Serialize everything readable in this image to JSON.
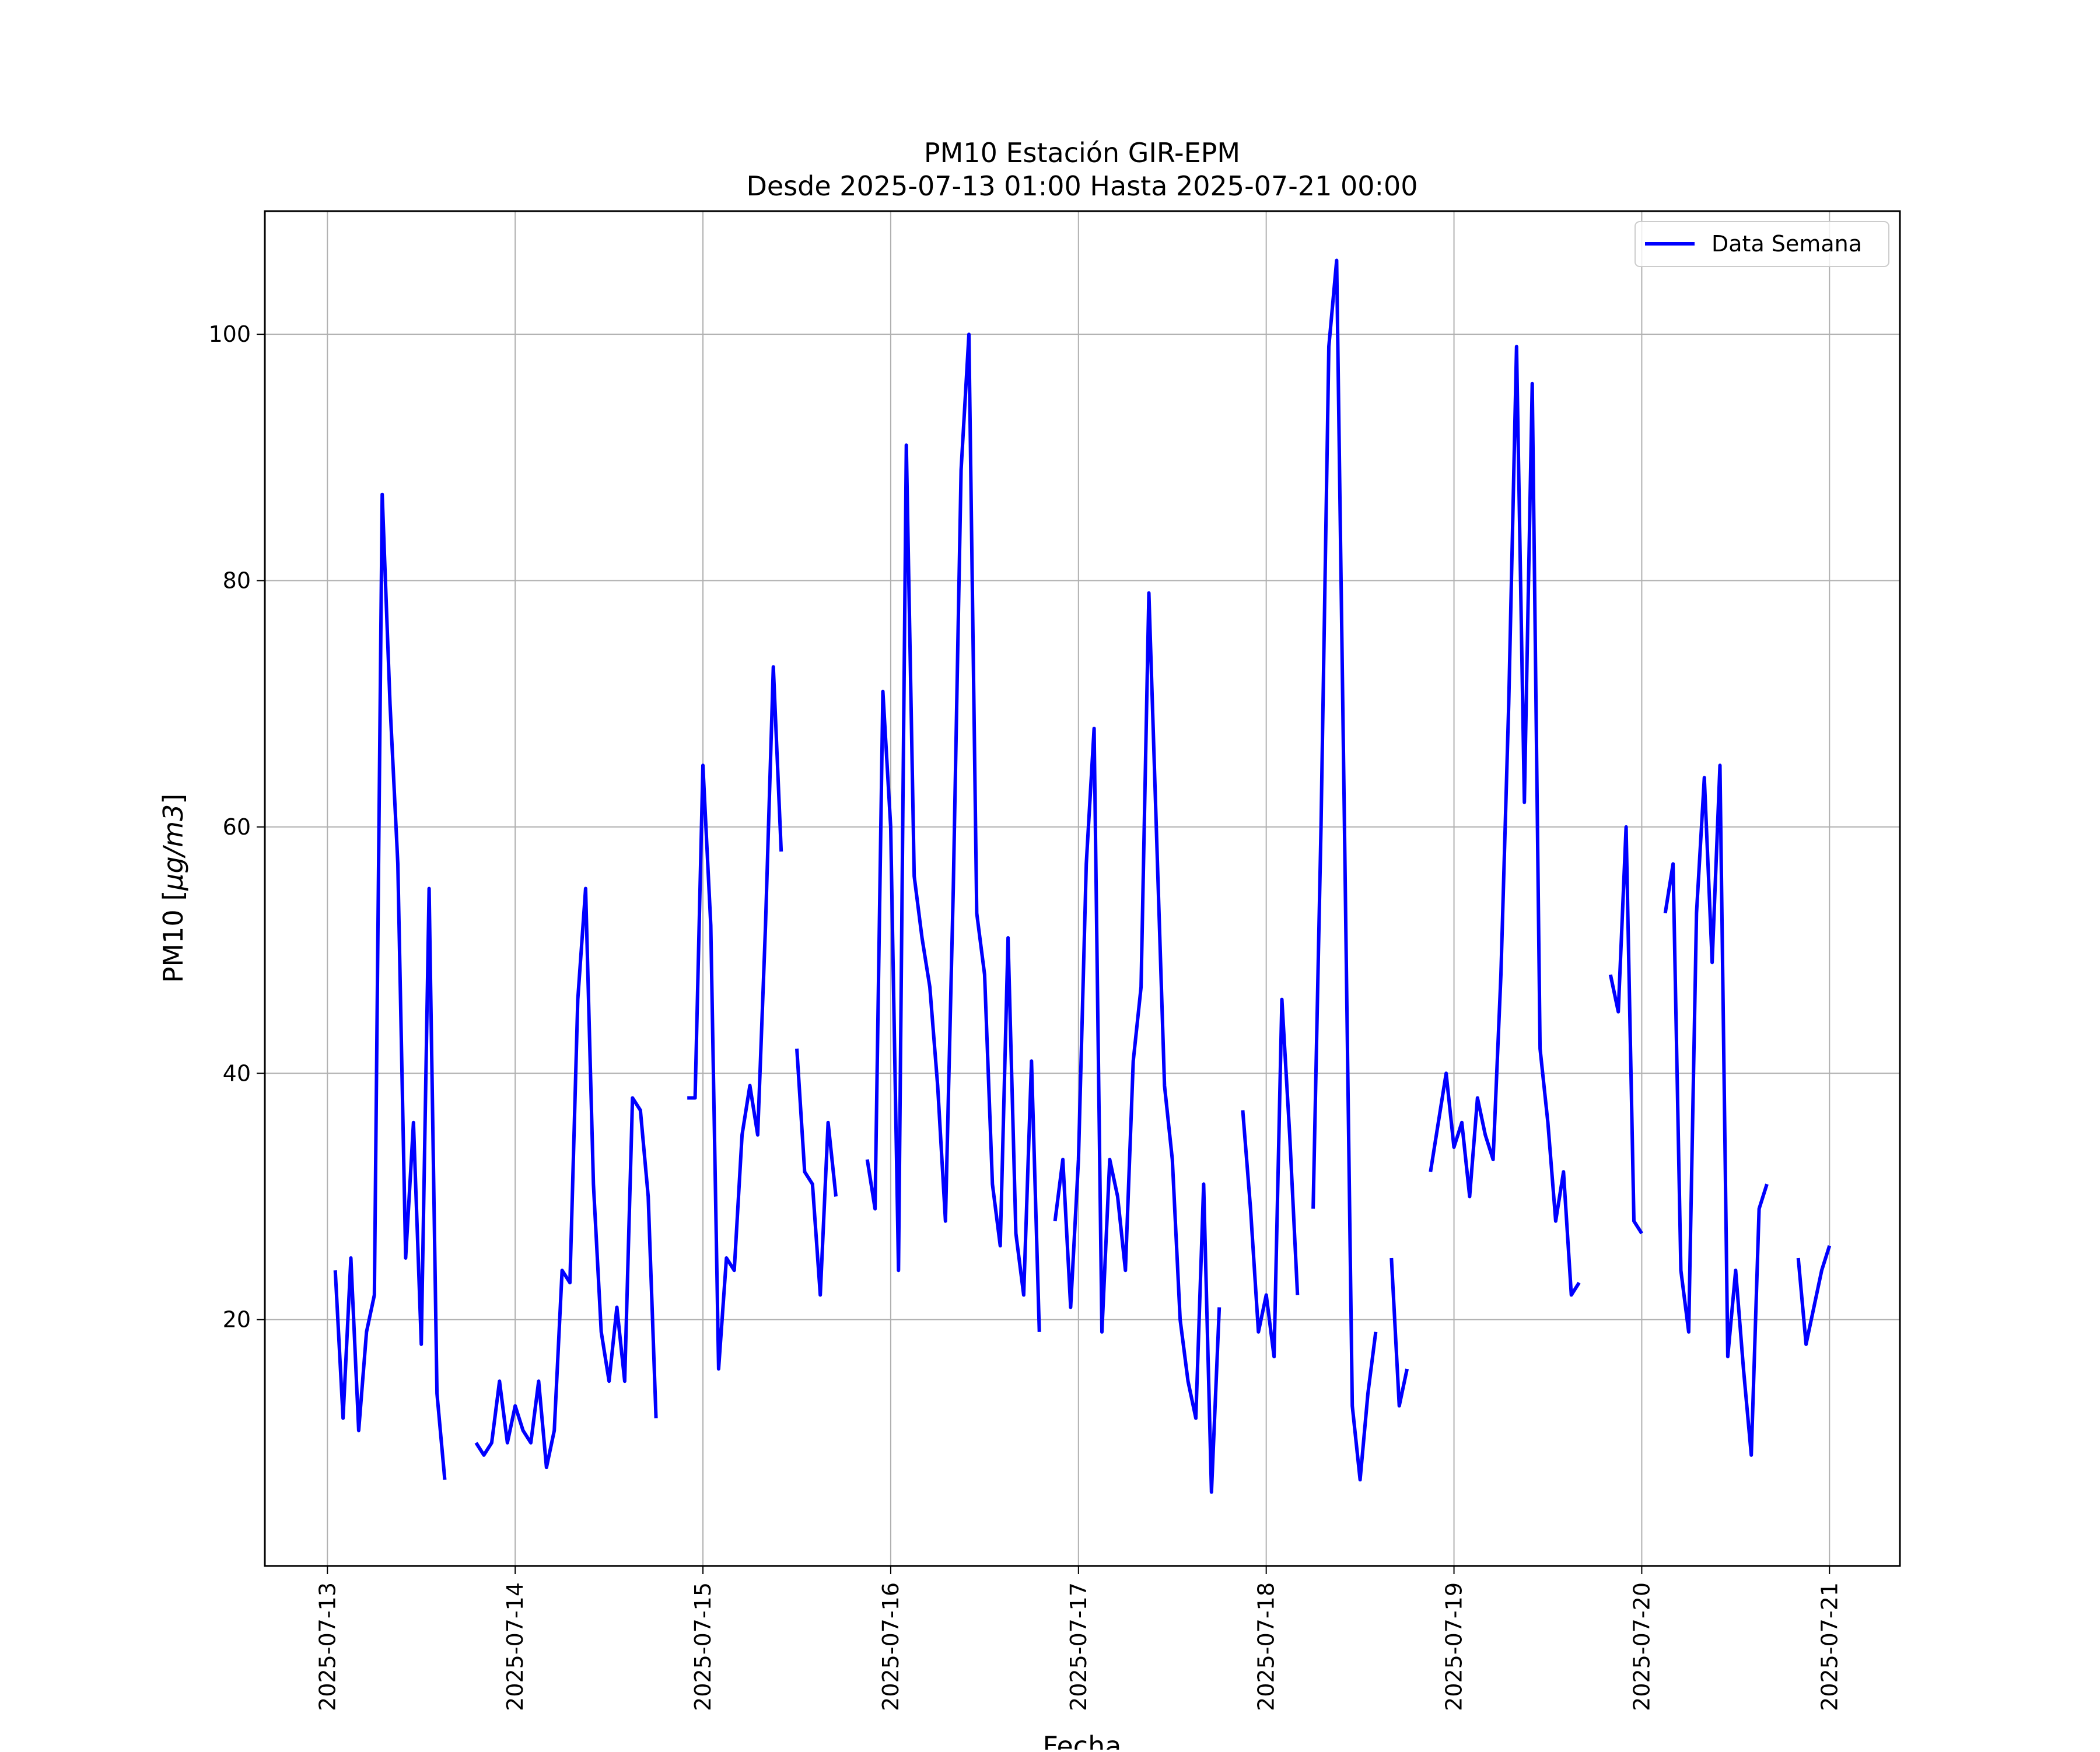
{
  "chart_data": {
    "type": "line",
    "title": "PM10 Estación GIR-EPM",
    "subtitle": "Desde 2025-07-13 01:00 Hasta 2025-07-21 00:00",
    "xlabel": "Fecha",
    "ylabel_main": "PM10 [",
    "ylabel_unit": "μg/m3",
    "ylabel_close": "]",
    "xlim": [
      "2025-07-12 16:00",
      "2025-07-21 09:00"
    ],
    "ylim": [
      0,
      110
    ],
    "grid": true,
    "legend_position": "top-right",
    "x_ticks": [
      "2025-07-13",
      "2025-07-14",
      "2025-07-15",
      "2025-07-16",
      "2025-07-17",
      "2025-07-18",
      "2025-07-19",
      "2025-07-20",
      "2025-07-21"
    ],
    "y_ticks": [
      20,
      40,
      60,
      80,
      100
    ],
    "series": [
      {
        "name": "Data Semana",
        "color": "#0000ff",
        "segments": [
          [
            [
              "2025-07-13 01:00",
              24
            ],
            [
              "2025-07-13 02:00",
              12
            ],
            [
              "2025-07-13 03:00",
              25
            ],
            [
              "2025-07-13 04:00",
              11
            ],
            [
              "2025-07-13 05:00",
              19
            ],
            [
              "2025-07-13 06:00",
              22
            ],
            [
              "2025-07-13 07:00",
              87
            ],
            [
              "2025-07-13 08:00",
              70
            ],
            [
              "2025-07-13 09:00",
              57
            ],
            [
              "2025-07-13 10:00",
              25
            ],
            [
              "2025-07-13 11:00",
              36
            ],
            [
              "2025-07-13 12:00",
              18
            ],
            [
              "2025-07-13 13:00",
              55
            ],
            [
              "2025-07-13 14:00",
              14
            ],
            [
              "2025-07-13 15:00",
              7
            ]
          ],
          [
            [
              "2025-07-13 19:00",
              10
            ],
            [
              "2025-07-13 20:00",
              9
            ],
            [
              "2025-07-13 21:00",
              10
            ],
            [
              "2025-07-13 22:00",
              15
            ],
            [
              "2025-07-13 23:00",
              10
            ],
            [
              "2025-07-14 00:00",
              13
            ],
            [
              "2025-07-14 01:00",
              11
            ],
            [
              "2025-07-14 02:00",
              10
            ],
            [
              "2025-07-14 03:00",
              15
            ],
            [
              "2025-07-14 04:00",
              8
            ],
            [
              "2025-07-14 05:00",
              11
            ],
            [
              "2025-07-14 06:00",
              24
            ],
            [
              "2025-07-14 07:00",
              23
            ],
            [
              "2025-07-14 08:00",
              46
            ],
            [
              "2025-07-14 09:00",
              55
            ],
            [
              "2025-07-14 10:00",
              31
            ],
            [
              "2025-07-14 11:00",
              19
            ],
            [
              "2025-07-14 12:00",
              15
            ],
            [
              "2025-07-14 13:00",
              21
            ],
            [
              "2025-07-14 14:00",
              15
            ],
            [
              "2025-07-14 15:00",
              38
            ],
            [
              "2025-07-14 16:00",
              37
            ],
            [
              "2025-07-14 17:00",
              30
            ],
            [
              "2025-07-14 18:00",
              12
            ]
          ],
          [
            [
              "2025-07-14 22:00",
              38
            ],
            [
              "2025-07-14 23:00",
              38
            ],
            [
              "2025-07-15 00:00",
              65
            ],
            [
              "2025-07-15 01:00",
              52
            ],
            [
              "2025-07-15 02:00",
              16
            ],
            [
              "2025-07-15 03:00",
              25
            ],
            [
              "2025-07-15 04:00",
              24
            ],
            [
              "2025-07-15 05:00",
              35
            ],
            [
              "2025-07-15 06:00",
              39
            ],
            [
              "2025-07-15 07:00",
              35
            ],
            [
              "2025-07-15 08:00",
              52
            ],
            [
              "2025-07-15 09:00",
              73
            ],
            [
              "2025-07-15 10:00",
              58
            ]
          ],
          [
            [
              "2025-07-15 12:00",
              42
            ],
            [
              "2025-07-15 13:00",
              32
            ],
            [
              "2025-07-15 14:00",
              31
            ],
            [
              "2025-07-15 15:00",
              22
            ],
            [
              "2025-07-15 16:00",
              36
            ],
            [
              "2025-07-15 17:00",
              30
            ]
          ],
          [
            [
              "2025-07-15 21:00",
              33
            ],
            [
              "2025-07-15 22:00",
              29
            ],
            [
              "2025-07-15 23:00",
              71
            ],
            [
              "2025-07-16 00:00",
              60
            ],
            [
              "2025-07-16 01:00",
              24
            ],
            [
              "2025-07-16 02:00",
              91
            ],
            [
              "2025-07-16 03:00",
              56
            ],
            [
              "2025-07-16 04:00",
              51
            ],
            [
              "2025-07-16 05:00",
              47
            ],
            [
              "2025-07-16 06:00",
              39
            ],
            [
              "2025-07-16 07:00",
              28
            ],
            [
              "2025-07-16 08:00",
              55
            ],
            [
              "2025-07-16 09:00",
              89
            ],
            [
              "2025-07-16 10:00",
              100
            ],
            [
              "2025-07-16 11:00",
              53
            ],
            [
              "2025-07-16 12:00",
              48
            ],
            [
              "2025-07-16 13:00",
              31
            ],
            [
              "2025-07-16 14:00",
              26
            ],
            [
              "2025-07-16 15:00",
              51
            ],
            [
              "2025-07-16 16:00",
              27
            ],
            [
              "2025-07-16 17:00",
              22
            ],
            [
              "2025-07-16 18:00",
              41
            ],
            [
              "2025-07-16 19:00",
              19
            ]
          ],
          [
            [
              "2025-07-16 21:00",
              28
            ],
            [
              "2025-07-16 22:00",
              33
            ],
            [
              "2025-07-16 23:00",
              21
            ],
            [
              "2025-07-17 00:00",
              33
            ],
            [
              "2025-07-17 01:00",
              57
            ],
            [
              "2025-07-17 02:00",
              68
            ],
            [
              "2025-07-17 03:00",
              19
            ],
            [
              "2025-07-17 04:00",
              33
            ],
            [
              "2025-07-17 05:00",
              30
            ],
            [
              "2025-07-17 06:00",
              24
            ],
            [
              "2025-07-17 07:00",
              41
            ],
            [
              "2025-07-17 08:00",
              47
            ],
            [
              "2025-07-17 09:00",
              79
            ],
            [
              "2025-07-17 10:00",
              59
            ],
            [
              "2025-07-17 11:00",
              39
            ],
            [
              "2025-07-17 12:00",
              33
            ],
            [
              "2025-07-17 13:00",
              20
            ],
            [
              "2025-07-17 14:00",
              15
            ],
            [
              "2025-07-17 15:00",
              12
            ],
            [
              "2025-07-17 16:00",
              31
            ],
            [
              "2025-07-17 17:00",
              6
            ],
            [
              "2025-07-17 18:00",
              21
            ]
          ],
          [
            [
              "2025-07-17 21:00",
              37
            ],
            [
              "2025-07-17 22:00",
              29
            ],
            [
              "2025-07-17 23:00",
              19
            ],
            [
              "2025-07-18 00:00",
              22
            ],
            [
              "2025-07-18 01:00",
              17
            ],
            [
              "2025-07-18 02:00",
              46
            ],
            [
              "2025-07-18 03:00",
              35
            ],
            [
              "2025-07-18 04:00",
              22
            ]
          ],
          [
            [
              "2025-07-18 06:00",
              29
            ],
            [
              "2025-07-18 07:00",
              60
            ],
            [
              "2025-07-18 08:00",
              99
            ],
            [
              "2025-07-18 09:00",
              106
            ],
            [
              "2025-07-18 10:00",
              60
            ],
            [
              "2025-07-18 11:00",
              13
            ],
            [
              "2025-07-18 12:00",
              7
            ],
            [
              "2025-07-18 13:00",
              14
            ],
            [
              "2025-07-18 14:00",
              19
            ]
          ],
          [
            [
              "2025-07-18 16:00",
              25
            ],
            [
              "2025-07-18 17:00",
              13
            ],
            [
              "2025-07-18 18:00",
              16
            ]
          ],
          [
            [
              "2025-07-18 21:00",
              32
            ],
            [
              "2025-07-18 22:00",
              36
            ],
            [
              "2025-07-18 23:00",
              40
            ],
            [
              "2025-07-19 00:00",
              34
            ],
            [
              "2025-07-19 01:00",
              36
            ],
            [
              "2025-07-19 02:00",
              30
            ],
            [
              "2025-07-19 03:00",
              38
            ],
            [
              "2025-07-19 04:00",
              35
            ],
            [
              "2025-07-19 05:00",
              33
            ],
            [
              "2025-07-19 06:00",
              48
            ],
            [
              "2025-07-19 07:00",
              70
            ],
            [
              "2025-07-19 08:00",
              99
            ],
            [
              "2025-07-19 09:00",
              62
            ],
            [
              "2025-07-19 10:00",
              96
            ],
            [
              "2025-07-19 11:00",
              42
            ],
            [
              "2025-07-19 12:00",
              36
            ],
            [
              "2025-07-19 13:00",
              28
            ],
            [
              "2025-07-19 14:00",
              32
            ],
            [
              "2025-07-19 15:00",
              22
            ],
            [
              "2025-07-19 16:00",
              23
            ]
          ],
          [
            [
              "2025-07-19 20:00",
              48
            ],
            [
              "2025-07-19 21:00",
              45
            ],
            [
              "2025-07-19 22:00",
              60
            ],
            [
              "2025-07-19 23:00",
              28
            ],
            [
              "2025-07-20 00:00",
              27
            ]
          ],
          [
            [
              "2025-07-20 03:00",
              53
            ],
            [
              "2025-07-20 04:00",
              57
            ],
            [
              "2025-07-20 05:00",
              24
            ],
            [
              "2025-07-20 06:00",
              19
            ],
            [
              "2025-07-20 07:00",
              53
            ],
            [
              "2025-07-20 08:00",
              64
            ],
            [
              "2025-07-20 09:00",
              49
            ],
            [
              "2025-07-20 10:00",
              65
            ],
            [
              "2025-07-20 11:00",
              17
            ],
            [
              "2025-07-20 12:00",
              24
            ],
            [
              "2025-07-20 13:00",
              16
            ],
            [
              "2025-07-20 14:00",
              9
            ],
            [
              "2025-07-20 15:00",
              29
            ],
            [
              "2025-07-20 16:00",
              31
            ]
          ],
          [
            [
              "2025-07-20 20:00",
              25
            ],
            [
              "2025-07-20 21:00",
              18
            ],
            [
              "2025-07-20 22:00",
              21
            ],
            [
              "2025-07-20 23:00",
              24
            ],
            [
              "2025-07-21 00:00",
              26
            ]
          ]
        ]
      }
    ]
  }
}
